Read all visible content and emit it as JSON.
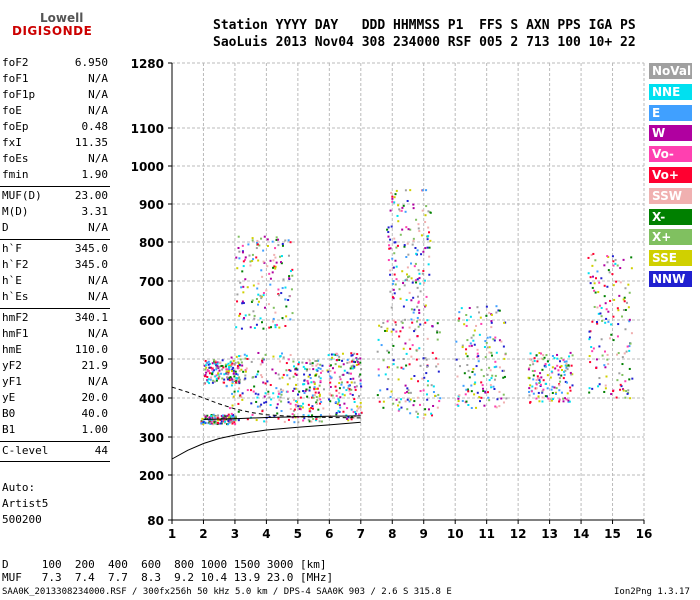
{
  "logo": {
    "line1": "Lowell",
    "line2": "DIGISONDE"
  },
  "header": {
    "line1": "Station YYYY DAY   DDD HHMMSS P1  FFS S AXN PPS IGA PS",
    "line2": "SaoLuis 2013 Nov04 308 234000 RSF 005 2 713 100 10+ 22"
  },
  "params": [
    {
      "k": "foF2",
      "v": "6.950"
    },
    {
      "k": "foF1",
      "v": "N/A"
    },
    {
      "k": "foF1p",
      "v": "N/A"
    },
    {
      "k": "foE",
      "v": "N/A"
    },
    {
      "k": "foEp",
      "v": "0.48"
    },
    {
      "k": "fxI",
      "v": "11.35"
    },
    {
      "k": "foEs",
      "v": "N/A"
    },
    {
      "k": "fmin",
      "v": "1.90"
    },
    {
      "k": "MUF(D)",
      "v": "23.00"
    },
    {
      "k": "M(D)",
      "v": "3.31"
    },
    {
      "k": "D",
      "v": "N/A"
    },
    {
      "k": "h`F",
      "v": "345.0"
    },
    {
      "k": "h`F2",
      "v": "345.0"
    },
    {
      "k": "h`E",
      "v": "N/A"
    },
    {
      "k": "h`Es",
      "v": "N/A"
    },
    {
      "k": "hmF2",
      "v": "340.1"
    },
    {
      "k": "hmF1",
      "v": "N/A"
    },
    {
      "k": "hmE",
      "v": "110.0"
    },
    {
      "k": "yF2",
      "v": "21.9"
    },
    {
      "k": "yF1",
      "v": "N/A"
    },
    {
      "k": "yE",
      "v": "20.0"
    },
    {
      "k": "B0",
      "v": "40.0"
    },
    {
      "k": "B1",
      "v": "1.00"
    },
    {
      "k": "C-level",
      "v": "44"
    }
  ],
  "auto": {
    "l1": "Auto:",
    "l2": "Artist5",
    "l3": "500200"
  },
  "legend": [
    {
      "label": "NoVal",
      "color": "#a0a0a0"
    },
    {
      "label": "NNE",
      "color": "#00e0f0"
    },
    {
      "label": "E",
      "color": "#40a0ff"
    },
    {
      "label": "W",
      "color": "#b000a0"
    },
    {
      "label": "Vo-",
      "color": "#ff40b0"
    },
    {
      "label": "Vo+",
      "color": "#ff0030"
    },
    {
      "label": "SSW",
      "color": "#f0b0b0"
    },
    {
      "label": "X-",
      "color": "#008000"
    },
    {
      "label": "X+",
      "color": "#80c060"
    },
    {
      "label": "SSE",
      "color": "#d0d000"
    },
    {
      "label": "NNW",
      "color": "#2020d0"
    }
  ],
  "footer": {
    "d_row": "D     100  200  400  600  800 1000 1500 3000 [km]",
    "muf_row": "MUF   7.3  7.4  7.7  8.3  9.2 10.4 13.9 23.0 [MHz]",
    "file_line": "SAA0K_2013308234000.RSF / 300fx256h 50 kHz 5.0 km / DPS-4 SAA0K 903 / 2.6 S 315.8 E",
    "version": "Ion2Png 1.3.17"
  },
  "chart_data": {
    "type": "scatter",
    "title": "",
    "xlabel": "",
    "ylabel": "",
    "xlim": [
      1,
      16
    ],
    "ylim": [
      80,
      1280
    ],
    "xticks": [
      "1",
      "2",
      "3",
      "4",
      "5",
      "6",
      "7",
      "8",
      "9",
      "10",
      "11",
      "12",
      "13",
      "14",
      "15",
      "16"
    ],
    "yticks": [
      "80",
      "200",
      "300",
      "400",
      "500",
      "600",
      "700",
      "800",
      "900",
      "1000",
      "1100",
      "1280"
    ],
    "ytick_values": [
      80,
      200,
      300,
      400,
      500,
      600,
      700,
      800,
      900,
      1000,
      1100,
      1280
    ],
    "grid": true,
    "clusters": [
      {
        "f": [
          1.9,
          3.0
        ],
        "h": [
          335,
          360
        ]
      },
      {
        "f": [
          2.0,
          3.2
        ],
        "h": [
          440,
          500
        ]
      },
      {
        "f": [
          2.7,
          4.8
        ],
        "h": [
          340,
          520
        ]
      },
      {
        "f": [
          3.0,
          4.8
        ],
        "h": [
          580,
          820
        ]
      },
      {
        "f": [
          4.8,
          5.8
        ],
        "h": [
          340,
          500
        ]
      },
      {
        "f": [
          5.9,
          7.0
        ],
        "h": [
          345,
          520
        ]
      },
      {
        "f": [
          7.5,
          9.5
        ],
        "h": [
          350,
          610
        ]
      },
      {
        "f": [
          7.8,
          9.2
        ],
        "h": [
          620,
          940
        ]
      },
      {
        "f": [
          10.0,
          11.6
        ],
        "h": [
          375,
          640
        ]
      },
      {
        "f": [
          12.3,
          13.7
        ],
        "h": [
          390,
          520
        ]
      },
      {
        "f": [
          14.2,
          15.6
        ],
        "h": [
          400,
          780
        ]
      }
    ],
    "trace_solid": [
      {
        "x": 1.0,
        "y": 242
      },
      {
        "x": 1.5,
        "y": 265
      },
      {
        "x": 2.0,
        "y": 283
      },
      {
        "x": 2.5,
        "y": 296
      },
      {
        "x": 3.0,
        "y": 305
      },
      {
        "x": 3.5,
        "y": 312
      },
      {
        "x": 4.0,
        "y": 318
      },
      {
        "x": 5.0,
        "y": 325
      },
      {
        "x": 6.0,
        "y": 331
      },
      {
        "x": 7.0,
        "y": 338
      }
    ],
    "trace_dashed": [
      {
        "x": 1.0,
        "y": 428
      },
      {
        "x": 1.5,
        "y": 415
      },
      {
        "x": 2.0,
        "y": 400
      },
      {
        "x": 2.5,
        "y": 385
      },
      {
        "x": 3.0,
        "y": 372
      },
      {
        "x": 3.5,
        "y": 363
      },
      {
        "x": 4.0,
        "y": 357
      },
      {
        "x": 5.0,
        "y": 352
      },
      {
        "x": 6.0,
        "y": 350
      },
      {
        "x": 7.0,
        "y": 349
      }
    ],
    "trace_lower": [
      {
        "x": 2.0,
        "y": 345
      },
      {
        "x": 3.0,
        "y": 347
      },
      {
        "x": 4.0,
        "y": 350
      },
      {
        "x": 5.0,
        "y": 352
      },
      {
        "x": 6.0,
        "y": 353
      },
      {
        "x": 7.0,
        "y": 354
      }
    ]
  }
}
